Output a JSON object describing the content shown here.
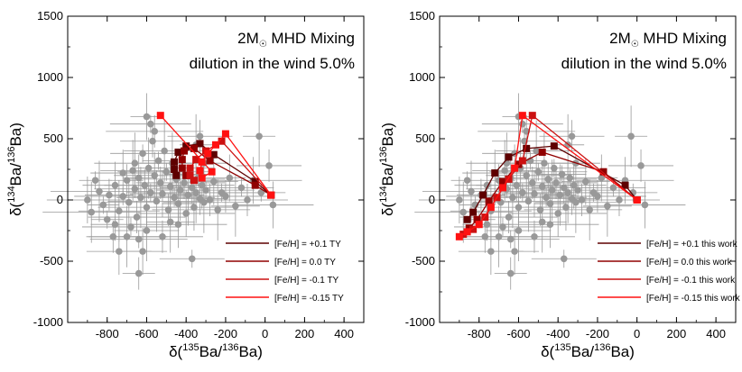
{
  "chart_data": [
    {
      "type": "scatter",
      "title_line1": "2M",
      "title_sub": "☉",
      "title_line1_rest": " MHD Mixing",
      "title_line2": "dilution in the wind 5.0%",
      "xlabel_pre": "δ(",
      "xlabel_sup1": "135",
      "xlabel_mid": "Ba/",
      "xlabel_sup2": "136",
      "xlabel_post": "Ba)",
      "ylabel_pre": "δ(",
      "ylabel_sup1": "134",
      "ylabel_mid": "Ba/",
      "ylabel_sup2": "136",
      "ylabel_post": "Ba)",
      "xlim": [
        -1000,
        500
      ],
      "ylim": [
        -1000,
        1500
      ],
      "xticks": [
        -800,
        -600,
        -400,
        -200,
        0,
        200,
        400
      ],
      "yticks": [
        -1000,
        -500,
        0,
        500,
        1000,
        1500
      ],
      "legend_position": "bottom-right",
      "grain_color": "#999999",
      "grains": [
        {
          "x": -820,
          "y": -40
        },
        {
          "x": -790,
          "y": 40
        },
        {
          "x": -760,
          "y": 120
        },
        {
          "x": -740,
          "y": -90
        },
        {
          "x": -720,
          "y": 30
        },
        {
          "x": -700,
          "y": 160
        },
        {
          "x": -690,
          "y": -20
        },
        {
          "x": -670,
          "y": 240
        },
        {
          "x": -660,
          "y": 90
        },
        {
          "x": -650,
          "y": -140
        },
        {
          "x": -640,
          "y": 180
        },
        {
          "x": -630,
          "y": 20
        },
        {
          "x": -620,
          "y": 380
        },
        {
          "x": -610,
          "y": 120
        },
        {
          "x": -600,
          "y": -60
        },
        {
          "x": -590,
          "y": 260
        },
        {
          "x": -580,
          "y": 60
        },
        {
          "x": -570,
          "y": 480
        },
        {
          "x": -560,
          "y": 200
        },
        {
          "x": -550,
          "y": -10
        },
        {
          "x": -540,
          "y": 320
        },
        {
          "x": -530,
          "y": 140
        },
        {
          "x": -520,
          "y": 50
        },
        {
          "x": -510,
          "y": 400
        },
        {
          "x": -500,
          "y": 230
        },
        {
          "x": -490,
          "y": -80
        },
        {
          "x": -480,
          "y": 110
        },
        {
          "x": -470,
          "y": 300
        },
        {
          "x": -460,
          "y": 20
        },
        {
          "x": -450,
          "y": 170
        },
        {
          "x": -440,
          "y": -30
        },
        {
          "x": -430,
          "y": 80
        },
        {
          "x": -420,
          "y": 260
        },
        {
          "x": -410,
          "y": 140
        },
        {
          "x": -400,
          "y": -110
        },
        {
          "x": -390,
          "y": 40
        },
        {
          "x": -380,
          "y": 210
        },
        {
          "x": -370,
          "y": 100
        },
        {
          "x": -360,
          "y": -60
        },
        {
          "x": -350,
          "y": 60
        },
        {
          "x": -340,
          "y": 180
        },
        {
          "x": -330,
          "y": 10
        },
        {
          "x": -320,
          "y": 120
        },
        {
          "x": -310,
          "y": -20
        },
        {
          "x": -300,
          "y": 80
        },
        {
          "x": -280,
          "y": 0
        },
        {
          "x": -260,
          "y": 150
        },
        {
          "x": -240,
          "y": -80
        },
        {
          "x": -220,
          "y": 60
        },
        {
          "x": -200,
          "y": 30
        },
        {
          "x": -180,
          "y": 180
        },
        {
          "x": -150,
          "y": -50
        },
        {
          "x": -120,
          "y": 100
        },
        {
          "x": -90,
          "y": 0
        },
        {
          "x": -60,
          "y": 160
        },
        {
          "x": -30,
          "y": 520
        },
        {
          "x": -20,
          "y": 60
        },
        {
          "x": 20,
          "y": 280
        },
        {
          "x": 40,
          "y": -40
        },
        {
          "x": -840,
          "y": 70
        },
        {
          "x": -800,
          "y": -160
        },
        {
          "x": -770,
          "y": -300
        },
        {
          "x": -740,
          "y": -420
        },
        {
          "x": -700,
          "y": -300
        },
        {
          "x": -680,
          "y": -220
        },
        {
          "x": -640,
          "y": -600
        },
        {
          "x": -620,
          "y": -420
        },
        {
          "x": -600,
          "y": -250
        },
        {
          "x": -580,
          "y": 620
        },
        {
          "x": -560,
          "y": 560
        },
        {
          "x": -600,
          "y": 680
        },
        {
          "x": -480,
          "y": -180
        },
        {
          "x": -370,
          "y": -480
        },
        {
          "x": -520,
          "y": -300
        },
        {
          "x": -440,
          "y": -200
        },
        {
          "x": -350,
          "y": 450
        },
        {
          "x": -310,
          "y": 300
        },
        {
          "x": -330,
          "y": 520
        },
        {
          "x": -900,
          "y": 0
        },
        {
          "x": -880,
          "y": -100
        },
        {
          "x": -860,
          "y": 160
        },
        {
          "x": -760,
          "y": -200
        },
        {
          "x": -720,
          "y": 220
        },
        {
          "x": -660,
          "y": 300
        },
        {
          "x": -640,
          "y": -320
        }
      ],
      "series": [
        {
          "name": "[Fe/H] = +0.1 TY",
          "color": "#5e0000",
          "points": [
            {
              "x": 30,
              "y": 40
            },
            {
              "x": -50,
              "y": 150
            },
            {
              "x": -260,
              "y": 370
            },
            {
              "x": -330,
              "y": 460
            },
            {
              "x": -400,
              "y": 440
            },
            {
              "x": -440,
              "y": 390
            },
            {
              "x": -460,
              "y": 310
            },
            {
              "x": -460,
              "y": 250
            },
            {
              "x": -450,
              "y": 200
            }
          ]
        },
        {
          "name": "[Fe/H] =   0.0 TY",
          "color": "#900000",
          "points": [
            {
              "x": 30,
              "y": 40
            },
            {
              "x": -50,
              "y": 120
            },
            {
              "x": -280,
              "y": 320
            },
            {
              "x": -360,
              "y": 420
            },
            {
              "x": -410,
              "y": 400
            },
            {
              "x": -420,
              "y": 330
            },
            {
              "x": -420,
              "y": 260
            },
            {
              "x": -400,
              "y": 200
            }
          ]
        },
        {
          "name": "[Fe/H] =  -0.1 TY",
          "color": "#cc1111",
          "points": [
            {
              "x": 30,
              "y": 40
            },
            {
              "x": -220,
              "y": 480
            },
            {
              "x": -300,
              "y": 400
            },
            {
              "x": -350,
              "y": 330
            },
            {
              "x": -380,
              "y": 260
            },
            {
              "x": -380,
              "y": 200
            },
            {
              "x": -360,
              "y": 160
            }
          ]
        },
        {
          "name": "[Fe/H] = -0.15 TY",
          "color": "#ff1111",
          "points": [
            {
              "x": 30,
              "y": 40
            },
            {
              "x": -200,
              "y": 540
            },
            {
              "x": -250,
              "y": 450
            },
            {
              "x": -290,
              "y": 380
            },
            {
              "x": -320,
              "y": 310
            },
            {
              "x": -330,
              "y": 240
            },
            {
              "x": -320,
              "y": 180
            },
            {
              "x": -270,
              "y": 230
            },
            {
              "x": -530,
              "y": 690
            }
          ]
        }
      ]
    },
    {
      "type": "scatter",
      "title_line1": "2M",
      "title_sub": "☉",
      "title_line1_rest": " MHD Mixing",
      "title_line2": "dilution in the wind 5.0%",
      "xlabel_pre": "δ(",
      "xlabel_sup1": "135",
      "xlabel_mid": "Ba/",
      "xlabel_sup2": "136",
      "xlabel_post": "Ba)",
      "ylabel_pre": "δ(",
      "ylabel_sup1": "134",
      "ylabel_mid": "Ba/",
      "ylabel_sup2": "136",
      "ylabel_post": "Ba)",
      "xlim": [
        -1000,
        500
      ],
      "ylim": [
        -1000,
        1500
      ],
      "xticks": [
        -800,
        -600,
        -400,
        -200,
        0,
        200,
        400
      ],
      "yticks": [
        -1000,
        -500,
        0,
        500,
        1000,
        1500
      ],
      "legend_position": "bottom-right",
      "grain_color": "#999999",
      "grains": [
        {
          "x": -820,
          "y": -40
        },
        {
          "x": -790,
          "y": 40
        },
        {
          "x": -760,
          "y": 120
        },
        {
          "x": -740,
          "y": -90
        },
        {
          "x": -720,
          "y": 30
        },
        {
          "x": -700,
          "y": 160
        },
        {
          "x": -690,
          "y": -20
        },
        {
          "x": -670,
          "y": 240
        },
        {
          "x": -660,
          "y": 90
        },
        {
          "x": -650,
          "y": -140
        },
        {
          "x": -640,
          "y": 180
        },
        {
          "x": -630,
          "y": 20
        },
        {
          "x": -620,
          "y": 380
        },
        {
          "x": -610,
          "y": 120
        },
        {
          "x": -600,
          "y": -60
        },
        {
          "x": -590,
          "y": 260
        },
        {
          "x": -580,
          "y": 60
        },
        {
          "x": -570,
          "y": 480
        },
        {
          "x": -560,
          "y": 200
        },
        {
          "x": -550,
          "y": -10
        },
        {
          "x": -540,
          "y": 320
        },
        {
          "x": -530,
          "y": 140
        },
        {
          "x": -520,
          "y": 50
        },
        {
          "x": -510,
          "y": 400
        },
        {
          "x": -500,
          "y": 230
        },
        {
          "x": -490,
          "y": -80
        },
        {
          "x": -480,
          "y": 110
        },
        {
          "x": -470,
          "y": 300
        },
        {
          "x": -460,
          "y": 20
        },
        {
          "x": -450,
          "y": 170
        },
        {
          "x": -440,
          "y": -30
        },
        {
          "x": -430,
          "y": 80
        },
        {
          "x": -420,
          "y": 260
        },
        {
          "x": -410,
          "y": 140
        },
        {
          "x": -400,
          "y": -110
        },
        {
          "x": -390,
          "y": 40
        },
        {
          "x": -380,
          "y": 210
        },
        {
          "x": -370,
          "y": 100
        },
        {
          "x": -360,
          "y": -60
        },
        {
          "x": -350,
          "y": 60
        },
        {
          "x": -340,
          "y": 180
        },
        {
          "x": -330,
          "y": 10
        },
        {
          "x": -320,
          "y": 120
        },
        {
          "x": -310,
          "y": -20
        },
        {
          "x": -300,
          "y": 80
        },
        {
          "x": -280,
          "y": 0
        },
        {
          "x": -260,
          "y": 150
        },
        {
          "x": -240,
          "y": -80
        },
        {
          "x": -220,
          "y": 60
        },
        {
          "x": -200,
          "y": 30
        },
        {
          "x": -180,
          "y": 180
        },
        {
          "x": -150,
          "y": -50
        },
        {
          "x": -120,
          "y": 100
        },
        {
          "x": -90,
          "y": 0
        },
        {
          "x": -60,
          "y": 160
        },
        {
          "x": -30,
          "y": 520
        },
        {
          "x": -20,
          "y": 60
        },
        {
          "x": 20,
          "y": 280
        },
        {
          "x": 40,
          "y": -40
        },
        {
          "x": -840,
          "y": 70
        },
        {
          "x": -800,
          "y": -160
        },
        {
          "x": -770,
          "y": -300
        },
        {
          "x": -740,
          "y": -420
        },
        {
          "x": -700,
          "y": -300
        },
        {
          "x": -680,
          "y": -220
        },
        {
          "x": -640,
          "y": -600
        },
        {
          "x": -620,
          "y": -420
        },
        {
          "x": -600,
          "y": -250
        },
        {
          "x": -580,
          "y": 620
        },
        {
          "x": -560,
          "y": 560
        },
        {
          "x": -600,
          "y": 680
        },
        {
          "x": -480,
          "y": -180
        },
        {
          "x": -370,
          "y": -480
        },
        {
          "x": -520,
          "y": -300
        },
        {
          "x": -440,
          "y": -200
        },
        {
          "x": -350,
          "y": 450
        },
        {
          "x": -310,
          "y": 300
        },
        {
          "x": -330,
          "y": 520
        },
        {
          "x": -900,
          "y": 0
        },
        {
          "x": -880,
          "y": -100
        },
        {
          "x": -860,
          "y": 160
        },
        {
          "x": -760,
          "y": -200
        },
        {
          "x": -720,
          "y": 220
        },
        {
          "x": -660,
          "y": 300
        },
        {
          "x": -640,
          "y": -320
        }
      ],
      "series": [
        {
          "name": "[Fe/H] = +0.1 this work",
          "color": "#5e0000",
          "points": [
            {
              "x": 0,
              "y": 0
            },
            {
              "x": -60,
              "y": 120
            },
            {
              "x": -420,
              "y": 440
            },
            {
              "x": -560,
              "y": 420
            },
            {
              "x": -650,
              "y": 350
            },
            {
              "x": -720,
              "y": 220
            },
            {
              "x": -780,
              "y": 40
            },
            {
              "x": -830,
              "y": -100
            },
            {
              "x": -860,
              "y": -160
            }
          ]
        },
        {
          "name": "[Fe/H] =   0.0 this work",
          "color": "#900000",
          "points": [
            {
              "x": 0,
              "y": 0
            },
            {
              "x": -170,
              "y": 230
            },
            {
              "x": -480,
              "y": 390
            },
            {
              "x": -600,
              "y": 290
            },
            {
              "x": -680,
              "y": 150
            },
            {
              "x": -750,
              "y": -10
            },
            {
              "x": -810,
              "y": -160
            },
            {
              "x": -850,
              "y": -230
            }
          ]
        },
        {
          "name": "[Fe/H] =  -0.1 this work",
          "color": "#cc1111",
          "points": [
            {
              "x": 0,
              "y": 0
            },
            {
              "x": -530,
              "y": 690
            },
            {
              "x": -580,
              "y": 320
            },
            {
              "x": -650,
              "y": 170
            },
            {
              "x": -710,
              "y": 20
            },
            {
              "x": -770,
              "y": -140
            },
            {
              "x": -830,
              "y": -240
            },
            {
              "x": -880,
              "y": -280
            }
          ]
        },
        {
          "name": "[Fe/H] = -0.15 this work",
          "color": "#ff1111",
          "points": [
            {
              "x": 0,
              "y": 0
            },
            {
              "x": -580,
              "y": 690
            },
            {
              "x": -620,
              "y": 260
            },
            {
              "x": -680,
              "y": 100
            },
            {
              "x": -740,
              "y": -60
            },
            {
              "x": -800,
              "y": -200
            },
            {
              "x": -860,
              "y": -260
            },
            {
              "x": -900,
              "y": -300
            }
          ]
        }
      ]
    }
  ]
}
